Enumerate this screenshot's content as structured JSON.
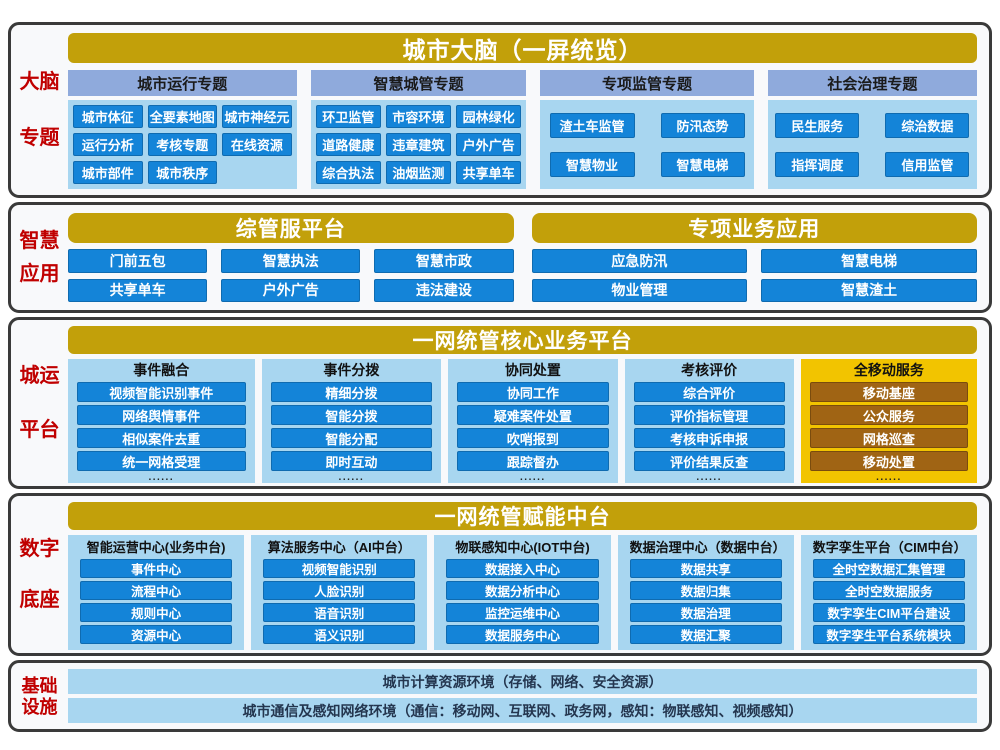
{
  "colors": {
    "section_border": "#3A3A3A",
    "section_bg": "#F8F9FB",
    "gold_header": "#C2A00A",
    "bright_gold_panel": "#F2C400",
    "brown_button": "#A06414",
    "blue_button": "#1484D8",
    "light_blue_panel": "#A8D6F0",
    "group_header_blue": "#8FAADC",
    "red_label": "#C00000"
  },
  "sections": {
    "brain": {
      "label_lines": [
        "大脑",
        "专题"
      ],
      "title": "城市大脑（一屏统览）",
      "groups": [
        {
          "header": "城市运行专题",
          "items": [
            "城市体征",
            "全要素地图",
            "城市神经元",
            "运行分析",
            "考核专题",
            "在线资源",
            "城市部件",
            "城市秩序"
          ]
        },
        {
          "header": "智慧城管专题",
          "items": [
            "环卫监管",
            "市容环境",
            "园林绿化",
            "道路健康",
            "违章建筑",
            "户外广告",
            "综合执法",
            "油烟监测",
            "共享单车"
          ]
        },
        {
          "header": "专项监管专题",
          "items": [
            "渣土车监管",
            "防汛态势",
            "智慧物业",
            "智慧电梯"
          ]
        },
        {
          "header": "社会治理专题",
          "items": [
            "民生服务",
            "综治数据",
            "指挥调度",
            "信用监管"
          ]
        }
      ]
    },
    "apps": {
      "label_lines": [
        "智慧",
        "应用"
      ],
      "blocks": [
        {
          "title": "综管服平台",
          "cols": 3,
          "items": [
            "门前五包",
            "智慧执法",
            "智慧市政",
            "共享单车",
            "户外广告",
            "违法建设"
          ]
        },
        {
          "title": "专项业务应用",
          "cols": 2,
          "items": [
            "应急防汛",
            "智慧电梯",
            "物业管理",
            "智慧渣土"
          ]
        }
      ]
    },
    "core": {
      "label_lines": [
        "城运",
        "平台"
      ],
      "title": "一网统管核心业务平台",
      "columns": [
        {
          "header": "事件融合",
          "style": "blue",
          "dots": "......",
          "items": [
            "视频智能识别事件",
            "网络舆情事件",
            "相似案件去重",
            "统一网格受理"
          ]
        },
        {
          "header": "事件分拨",
          "style": "blue",
          "dots": "......",
          "items": [
            "精细分拨",
            "智能分拨",
            "智能分配",
            "即时互动"
          ]
        },
        {
          "header": "协同处置",
          "style": "blue",
          "dots": "......",
          "items": [
            "协同工作",
            "疑难案件处置",
            "吹哨报到",
            "跟踪督办"
          ]
        },
        {
          "header": "考核评价",
          "style": "blue",
          "dots": "......",
          "items": [
            "综合评价",
            "评价指标管理",
            "考核申诉申报",
            "评价结果反查"
          ]
        },
        {
          "header": "全移动服务",
          "style": "gold",
          "dots": "......",
          "items": [
            "移动基座",
            "公众服务",
            "网格巡查",
            "移动处置"
          ]
        }
      ]
    },
    "base": {
      "label_lines": [
        "数字",
        "底座"
      ],
      "title": "一网统管赋能中台",
      "columns": [
        {
          "header": "智能运营中心(业务中台)",
          "items": [
            "事件中心",
            "流程中心",
            "规则中心",
            "资源中心"
          ]
        },
        {
          "header": "算法服务中心（AI中台）",
          "items": [
            "视频智能识别",
            "人脸识别",
            "语音识别",
            "语义识别"
          ]
        },
        {
          "header": "物联感知中心(IOT中台)",
          "items": [
            "数据接入中心",
            "数据分析中心",
            "监控运维中心",
            "数据服务中心"
          ]
        },
        {
          "header": "数据治理中心（数据中台）",
          "items": [
            "数据共享",
            "数据归集",
            "数据治理",
            "数据汇聚"
          ]
        },
        {
          "header": "数字孪生平台（CIM中台）",
          "items": [
            "全时空数据汇集管理",
            "全时空数据服务",
            "数字孪生CIM平台建设",
            "数字孪生平台系统模块"
          ]
        }
      ]
    },
    "infra": {
      "label_lines": [
        "基础",
        "设施"
      ],
      "bars": [
        "城市计算资源环境（存储、网络、安全资源）",
        "城市通信及感知网络环境（通信：移动网、互联网、政务网，感知：物联感知、视频感知）"
      ]
    }
  }
}
